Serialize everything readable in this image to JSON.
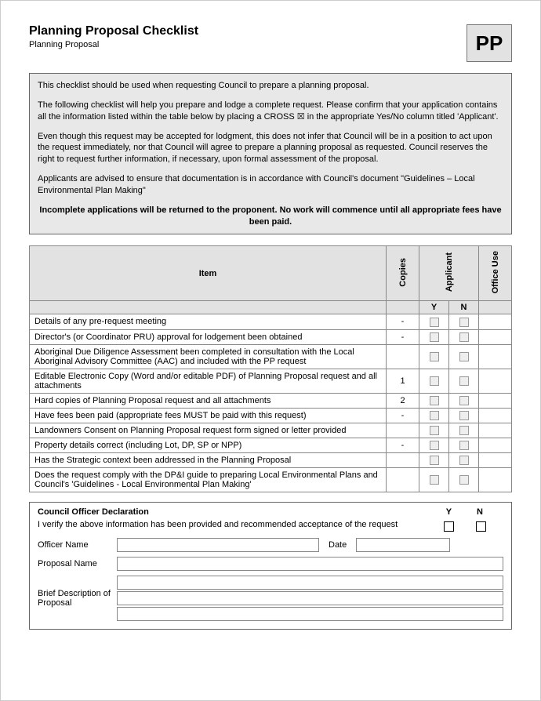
{
  "header": {
    "title": "Planning Proposal Checklist",
    "subtitle": "Planning Proposal",
    "badge": "PP"
  },
  "intro": {
    "p1": "This checklist should be used when requesting Council to prepare a planning proposal.",
    "p2": "The following checklist will help you prepare and lodge a complete request.  Please confirm that your application contains all the information listed within the table below by placing a CROSS ☒ in the appropriate Yes/No column titled 'Applicant'.",
    "p3": "Even though this request may be accepted for lodgment, this does not infer that Council will be in a position to act upon the request immediately, nor that Council will agree to prepare a planning proposal as requested.  Council reserves the right to request further information, if necessary, upon formal assessment of the proposal.",
    "p4": "Applicants are advised to ensure that documentation is in accordance with Council's document \"Guidelines – Local Environmental Plan Making\"",
    "bold": "Incomplete applications will be returned to the proponent.  No work will commence until all appropriate fees have been paid."
  },
  "table": {
    "headers": {
      "item": "Item",
      "copies": "Copies",
      "applicant": "Applicant",
      "office": "Office Use",
      "y": "Y",
      "n": "N"
    },
    "rows": [
      {
        "item": "Details of any pre-request meeting",
        "copies": "-"
      },
      {
        "item": "Director's (or Coordinator PRU) approval for lodgement been obtained",
        "copies": "-"
      },
      {
        "item": "Aboriginal Due Diligence Assessment been completed in consultation with the Local Aboriginal Advisory Committee (AAC) and included with the PP request",
        "copies": ""
      },
      {
        "item": "Editable Electronic Copy (Word and/or editable PDF) of Planning Proposal request and all attachments",
        "copies": "1"
      },
      {
        "item": "Hard copies of Planning Proposal request and all attachments",
        "copies": "2"
      },
      {
        "item": "Have fees been paid (appropriate fees MUST be paid with this request)",
        "copies": "-"
      },
      {
        "item": "Landowners Consent on Planning Proposal request form signed or letter provided",
        "copies": ""
      },
      {
        "item": "Property details correct (including Lot, DP, SP or NPP)",
        "copies": "-"
      },
      {
        "item": "Has the Strategic context been addressed in the Planning Proposal",
        "copies": ""
      },
      {
        "item": "Does the request comply with the DP&I guide to preparing Local Environmental Plans and Council's 'Guidelines - Local Environmental Plan Making'",
        "copies": ""
      }
    ]
  },
  "declaration": {
    "title": "Council Officer Declaration",
    "y": "Y",
    "n": "N",
    "verify": "I verify the above information has been provided and recommended acceptance of the request",
    "labels": {
      "officer": "Officer Name",
      "date": "Date",
      "proposal": "Proposal Name",
      "desc": "Brief Description of Proposal"
    }
  },
  "colors": {
    "page_border": "#cccccc",
    "box_bg": "#e8e8e8",
    "header_bg": "#e2e2e2",
    "border": "#888888",
    "text": "#000000"
  }
}
